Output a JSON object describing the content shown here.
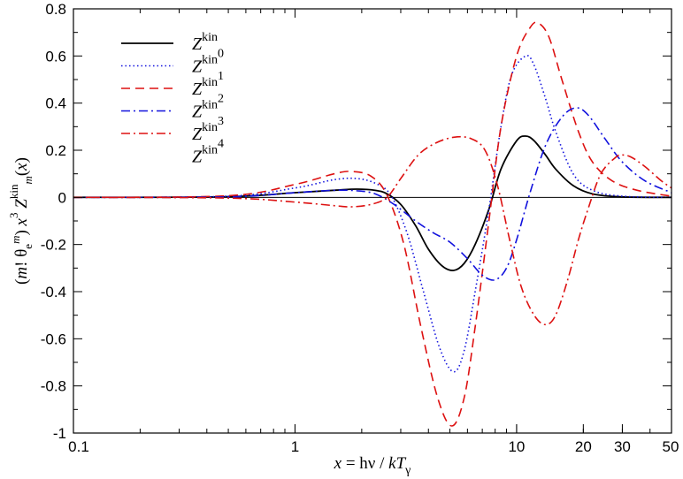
{
  "chart_data": {
    "type": "line",
    "title": "",
    "xlabel": "x = hν / kT_γ",
    "ylabel": "(m! θe^m) x^3 Z^kin_m(x)",
    "xscale": "log",
    "xlim": [
      0.1,
      50
    ],
    "ylim": [
      -1,
      0.8
    ],
    "x_ticks": [
      "0.1",
      "1",
      "10",
      "20",
      "30",
      "50"
    ],
    "y_ticks": [
      "-1",
      "-0.8",
      "-0.6",
      "-0.4",
      "-0.2",
      "0",
      "0.2",
      "0.4",
      "0.6",
      "0.8"
    ],
    "grid": false,
    "legend_position": "top-left",
    "series": [
      {
        "name": "Z^kin",
        "legend": {
          "base": "Z",
          "sup": "kin",
          "sub": ""
        },
        "color": "#000000",
        "dash": "solid",
        "points": [
          [
            0.1,
            0
          ],
          [
            0.5,
            0.003
          ],
          [
            1.0,
            0.02
          ],
          [
            1.5,
            0.03
          ],
          [
            1.9,
            0.035
          ],
          [
            2.3,
            0.03
          ],
          [
            2.6,
            0.015
          ],
          [
            3.0,
            -0.03
          ],
          [
            3.5,
            -0.12
          ],
          [
            4.0,
            -0.22
          ],
          [
            4.6,
            -0.29
          ],
          [
            5.2,
            -0.31
          ],
          [
            5.8,
            -0.28
          ],
          [
            6.5,
            -0.2
          ],
          [
            7.5,
            -0.05
          ],
          [
            8.5,
            0.12
          ],
          [
            10.0,
            0.24
          ],
          [
            11.0,
            0.26
          ],
          [
            12.0,
            0.24
          ],
          [
            13.5,
            0.18
          ],
          [
            15.0,
            0.12
          ],
          [
            18.0,
            0.05
          ],
          [
            22.0,
            0.015
          ],
          [
            30.0,
            0.002
          ],
          [
            50.0,
            0
          ]
        ]
      },
      {
        "name": "Z^kin_0",
        "legend": {
          "base": "Z",
          "sup": "kin",
          "sub": "0"
        },
        "color": "#1111dd",
        "dash": "dotted",
        "points": [
          [
            0.1,
            0
          ],
          [
            0.5,
            0.005
          ],
          [
            1.0,
            0.04
          ],
          [
            1.5,
            0.075
          ],
          [
            1.9,
            0.08
          ],
          [
            2.3,
            0.06
          ],
          [
            2.7,
            0.01
          ],
          [
            3.2,
            -0.15
          ],
          [
            3.8,
            -0.4
          ],
          [
            4.5,
            -0.64
          ],
          [
            5.2,
            -0.74
          ],
          [
            5.8,
            -0.65
          ],
          [
            6.5,
            -0.4
          ],
          [
            7.5,
            -0.05
          ],
          [
            8.5,
            0.3
          ],
          [
            9.5,
            0.52
          ],
          [
            11.0,
            0.6
          ],
          [
            12.0,
            0.56
          ],
          [
            13.5,
            0.42
          ],
          [
            15.0,
            0.28
          ],
          [
            18.0,
            0.1
          ],
          [
            22.0,
            0.03
          ],
          [
            30.0,
            0.005
          ],
          [
            50.0,
            0
          ]
        ]
      },
      {
        "name": "Z^kin_1",
        "legend": {
          "base": "Z",
          "sup": "kin",
          "sub": "1"
        },
        "color": "#dd1111",
        "dash": "dashed",
        "points": [
          [
            0.1,
            0
          ],
          [
            0.5,
            0.007
          ],
          [
            1.0,
            0.055
          ],
          [
            1.5,
            0.1
          ],
          [
            1.8,
            0.11
          ],
          [
            2.2,
            0.09
          ],
          [
            2.6,
            0.01
          ],
          [
            3.1,
            -0.2
          ],
          [
            3.7,
            -0.55
          ],
          [
            4.4,
            -0.85
          ],
          [
            5.1,
            -0.97
          ],
          [
            5.8,
            -0.85
          ],
          [
            6.5,
            -0.55
          ],
          [
            7.5,
            -0.1
          ],
          [
            8.5,
            0.3
          ],
          [
            10.0,
            0.6
          ],
          [
            11.5,
            0.72
          ],
          [
            12.5,
            0.74
          ],
          [
            14.0,
            0.68
          ],
          [
            16.0,
            0.5
          ],
          [
            19.0,
            0.28
          ],
          [
            22.0,
            0.15
          ],
          [
            27.0,
            0.07
          ],
          [
            35.0,
            0.03
          ],
          [
            50.0,
            0.005
          ]
        ]
      },
      {
        "name": "Z^kin_2",
        "legend": {
          "base": "Z",
          "sup": "kin",
          "sub": "2"
        },
        "color": "#1111dd",
        "dash": "dashdot",
        "points": [
          [
            0.1,
            0
          ],
          [
            0.5,
            0.002
          ],
          [
            1.0,
            0.02
          ],
          [
            1.5,
            0.03
          ],
          [
            1.9,
            0.028
          ],
          [
            2.3,
            0.015
          ],
          [
            2.8,
            -0.03
          ],
          [
            3.5,
            -0.1
          ],
          [
            4.2,
            -0.15
          ],
          [
            5.0,
            -0.19
          ],
          [
            6.0,
            -0.26
          ],
          [
            7.0,
            -0.33
          ],
          [
            8.0,
            -0.35
          ],
          [
            9.0,
            -0.3
          ],
          [
            10.0,
            -0.18
          ],
          [
            11.5,
            0.02
          ],
          [
            13.5,
            0.22
          ],
          [
            16.0,
            0.34
          ],
          [
            18.5,
            0.38
          ],
          [
            21.0,
            0.35
          ],
          [
            25.0,
            0.25
          ],
          [
            30.0,
            0.15
          ],
          [
            38.0,
            0.07
          ],
          [
            50.0,
            0.02
          ]
        ]
      },
      {
        "name": "Z^kin_3",
        "legend": {
          "base": "Z",
          "sup": "kin",
          "sub": "3"
        },
        "color": "#dd1111",
        "dash": "dashdot",
        "points": [
          [
            0.1,
            0
          ],
          [
            0.5,
            -0.003
          ],
          [
            1.0,
            -0.02
          ],
          [
            1.5,
            -0.035
          ],
          [
            1.8,
            -0.04
          ],
          [
            2.2,
            -0.03
          ],
          [
            2.6,
            0.0
          ],
          [
            3.0,
            0.08
          ],
          [
            3.6,
            0.18
          ],
          [
            4.3,
            0.23
          ],
          [
            5.2,
            0.255
          ],
          [
            6.2,
            0.25
          ],
          [
            7.2,
            0.2
          ],
          [
            8.2,
            0.05
          ],
          [
            9.3,
            -0.18
          ],
          [
            10.5,
            -0.38
          ],
          [
            12.0,
            -0.5
          ],
          [
            13.5,
            -0.54
          ],
          [
            15.0,
            -0.5
          ],
          [
            17.0,
            -0.35
          ],
          [
            19.0,
            -0.18
          ],
          [
            21.0,
            -0.05
          ],
          [
            24.0,
            0.1
          ],
          [
            28.0,
            0.17
          ],
          [
            30.0,
            0.18
          ],
          [
            33.0,
            0.17
          ],
          [
            38.0,
            0.13
          ],
          [
            45.0,
            0.07
          ],
          [
            50.0,
            0.04
          ]
        ]
      },
      {
        "name": "Z^kin_4",
        "legend": {
          "base": "Z",
          "sup": "kin",
          "sub": "4"
        },
        "color": "#dd1111",
        "dash": "dashdot",
        "hidden_curve": true,
        "points": []
      }
    ]
  }
}
